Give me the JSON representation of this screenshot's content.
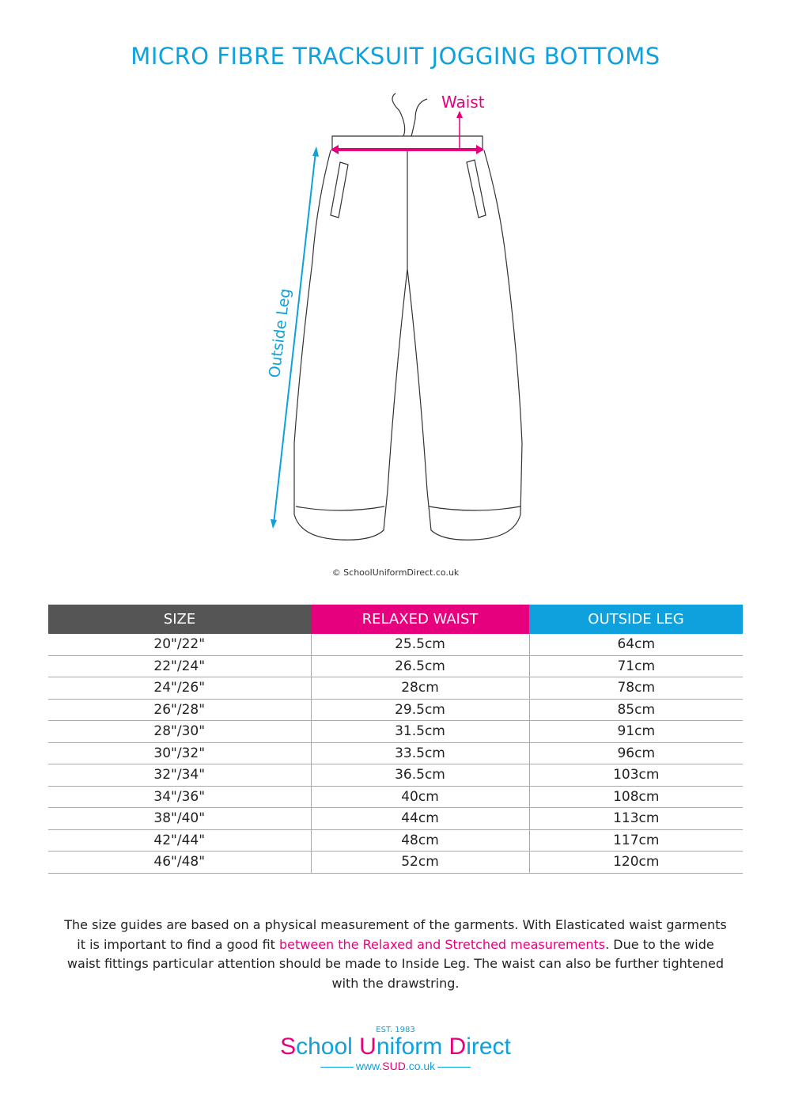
{
  "title": "MICRO FIBRE TRACKSUIT JOGGING BOTTOMS",
  "diagram": {
    "waist_label": "Waist",
    "outside_leg_label": "Outside Leg",
    "copyright": "© SchoolUniformDirect.co.uk"
  },
  "colors": {
    "blue": "#0fa0de",
    "pink": "#e6007e",
    "grey": "#555555"
  },
  "table": {
    "headers": [
      "SIZE",
      "RELAXED WAIST",
      "OUTSIDE LEG"
    ],
    "rows": [
      [
        "20\"/22\"",
        "25.5cm",
        "64cm"
      ],
      [
        "22\"/24\"",
        "26.5cm",
        "71cm"
      ],
      [
        "24\"/26\"",
        "28cm",
        "78cm"
      ],
      [
        "26\"/28\"",
        "29.5cm",
        "85cm"
      ],
      [
        "28\"/30\"",
        "31.5cm",
        "91cm"
      ],
      [
        "30\"/32\"",
        "33.5cm",
        "96cm"
      ],
      [
        "32\"/34\"",
        "36.5cm",
        "103cm"
      ],
      [
        "34\"/36\"",
        "40cm",
        "108cm"
      ],
      [
        "38\"/40\"",
        "44cm",
        "113cm"
      ],
      [
        "42\"/44\"",
        "48cm",
        "117cm"
      ],
      [
        "46\"/48\"",
        "52cm",
        "120cm"
      ]
    ]
  },
  "note": {
    "part1": "The size guides are based on a physical measurement of the garments. With Elasticated waist garments it is important to find a good fit ",
    "highlight": "between the Relaxed and Stretched measurements",
    "part2": ". Due to the wide waist fittings particular attention should be made to Inside Leg. The waist can also be further tightened with the drawstring."
  },
  "logo": {
    "est": "EST. 1983",
    "s": "S",
    "chool": "chool ",
    "u": "U",
    "niform": "niform ",
    "d": "D",
    "irect": "irect",
    "url_pre": "www.",
    "url_mid": "SUD",
    "url_post": ".co.uk"
  }
}
